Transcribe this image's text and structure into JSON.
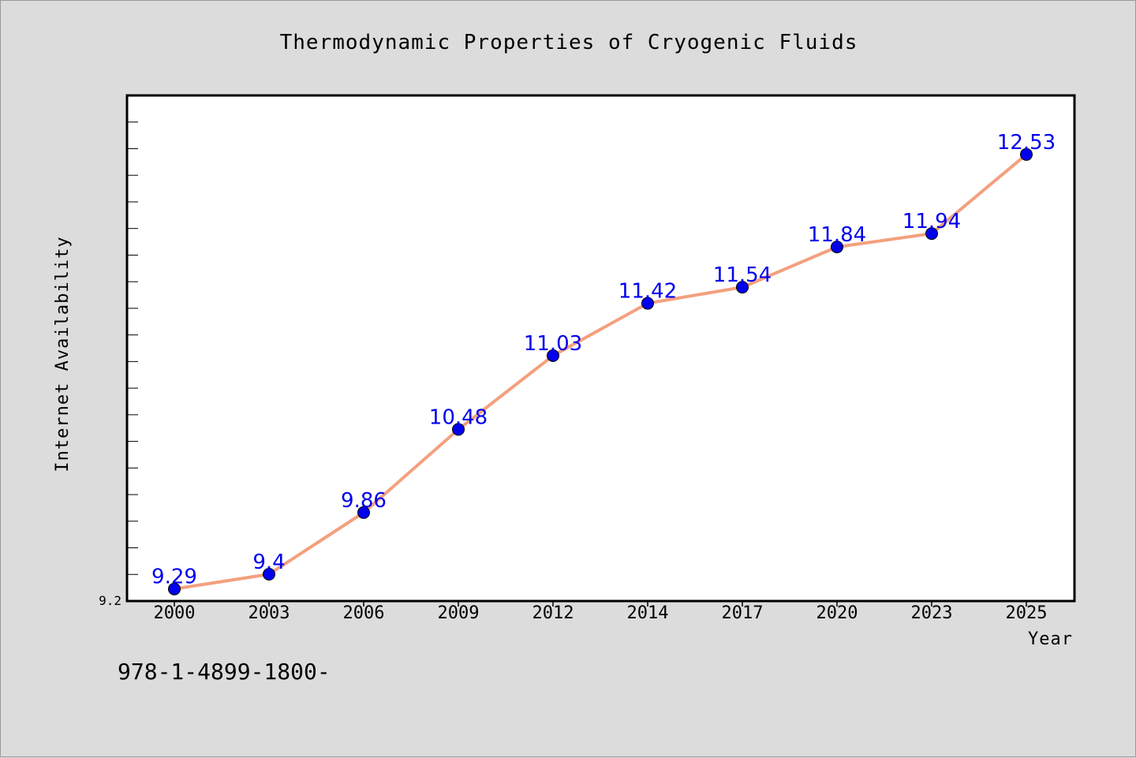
{
  "chart_data": {
    "type": "line",
    "title": "Thermodynamic Properties of Cryogenic Fluids",
    "xlabel": "Year",
    "ylabel": "Internet Availability",
    "categories": [
      "2000",
      "2003",
      "2006",
      "2009",
      "2012",
      "2014",
      "2017",
      "2020",
      "2023",
      "2025"
    ],
    "series": [
      {
        "values": [
          9.29,
          9.4,
          9.86,
          10.48,
          11.03,
          11.42,
          11.54,
          11.84,
          11.94,
          12.53
        ]
      }
    ],
    "data_labels": [
      "9.29",
      "9.4",
      "9.86",
      "10.48",
      "11.03",
      "11.42",
      "11.54",
      "11.84",
      "11.94",
      "12.53"
    ],
    "ylim": [
      9.2,
      12.97
    ],
    "yticks": [
      "9.2"
    ],
    "grid": false,
    "colors": {
      "line": "#f4a07e",
      "marker": "#0000ee",
      "label": "#0000ee",
      "background": "#dcdcdc",
      "plot_background": "#ffffff"
    }
  },
  "footer": {
    "text": "978-1-4899-1800-"
  }
}
